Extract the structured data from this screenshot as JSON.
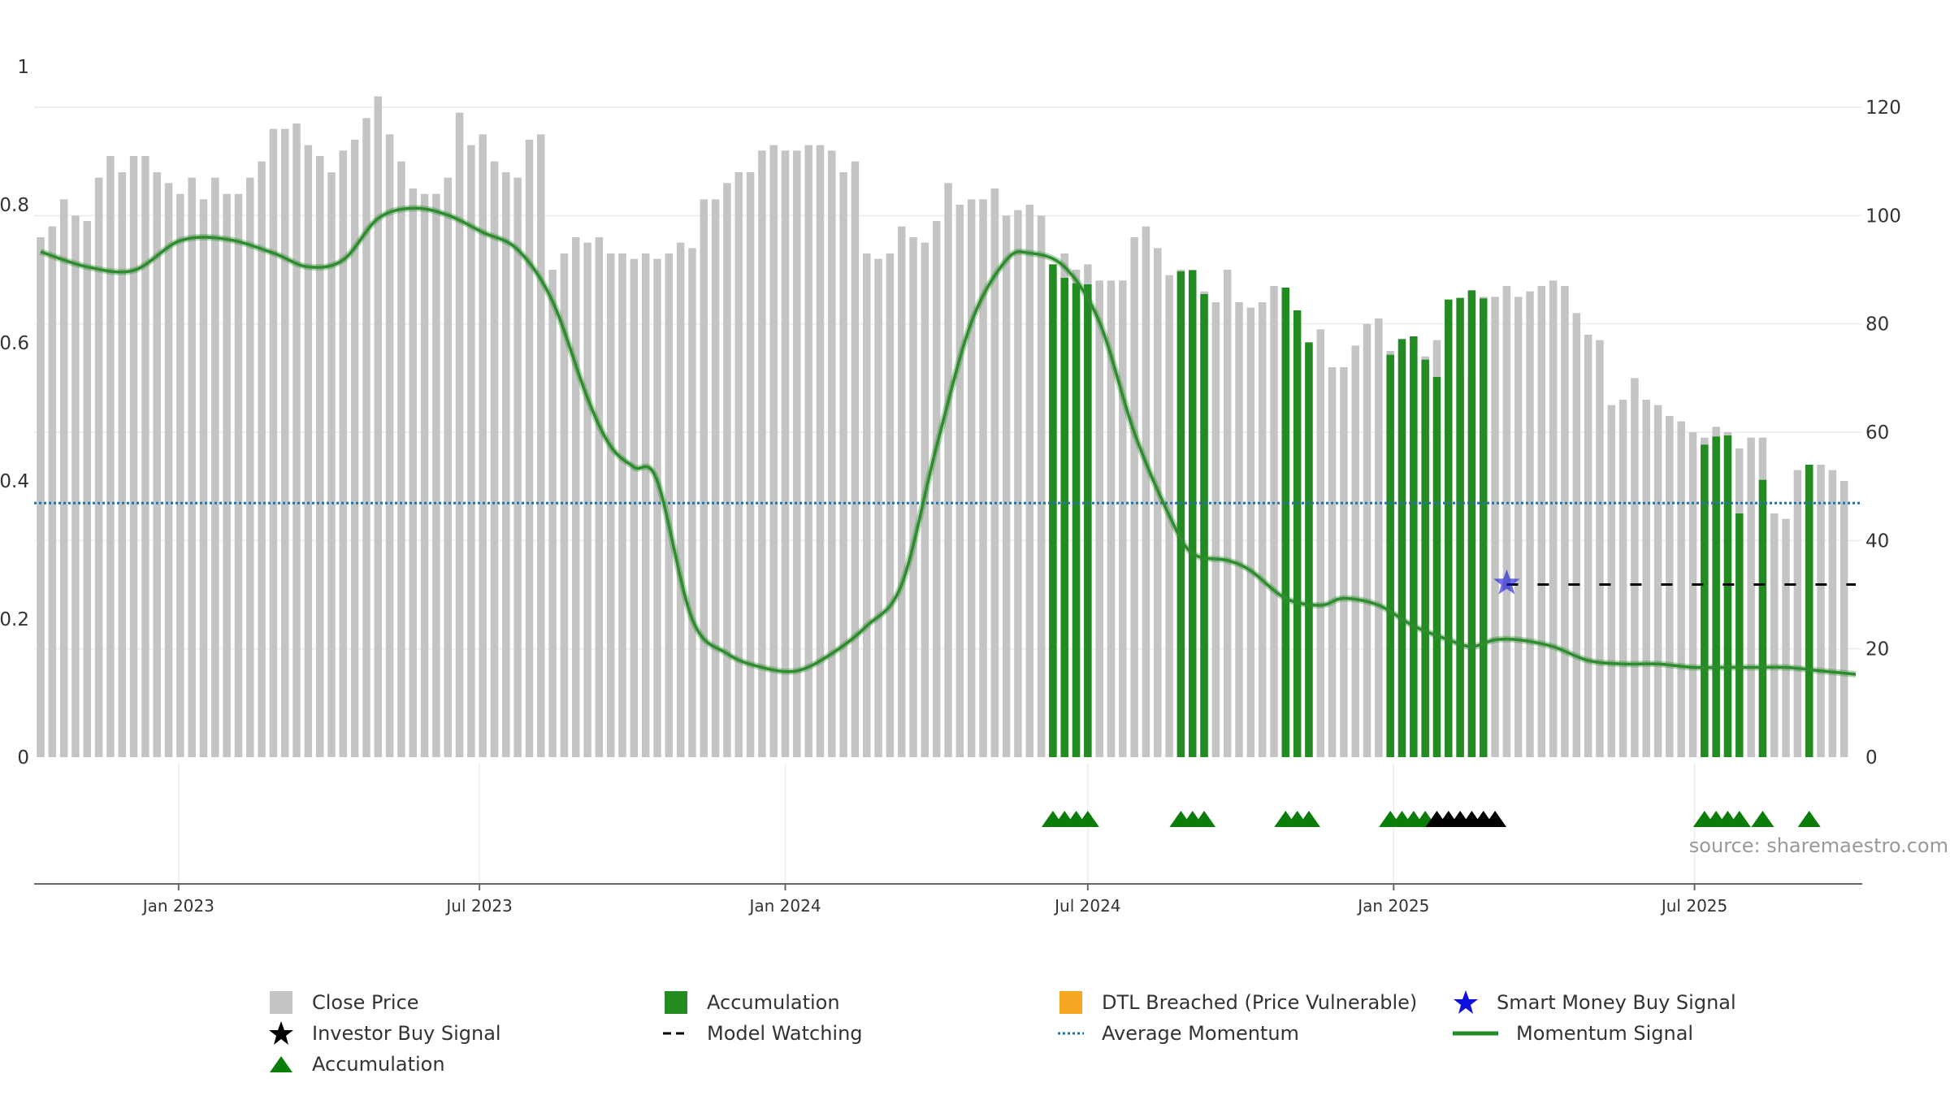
{
  "chart_data": {
    "type": "bar",
    "source_text": "source: sharemaestro.com",
    "left_axis": {
      "ylim": [
        0,
        1
      ],
      "ticks": [
        0,
        0.2,
        0.4,
        0.6,
        0.8,
        1
      ],
      "tick_labels": [
        "0",
        "0.2",
        "0.4",
        "0.6",
        "0.8",
        "1"
      ]
    },
    "right_axis": {
      "ylim": [
        0,
        127.5
      ],
      "ticks": [
        0,
        20,
        40,
        60,
        80,
        100,
        120
      ],
      "tick_labels": [
        "0",
        "20",
        "40",
        "60",
        "80",
        "100",
        "120"
      ]
    },
    "x_axis": {
      "start": "2022-10-10",
      "end": "2025-10-06",
      "ticks": [
        "2023-01-01",
        "2023-07-01",
        "2024-01-01",
        "2024-07-01",
        "2025-01-01",
        "2025-07-01"
      ],
      "tick_labels": [
        "Jan 2023",
        "Jul 2023",
        "Jan 2024",
        "Jul 2024",
        "Jan 2025",
        "Jul 2025"
      ]
    },
    "grid": true,
    "legend_position": "bottom",
    "colors": {
      "close_price": "#c4c4c4",
      "accumulation": "#228b22",
      "dtl_breached": "#f5a623",
      "smart_money": "#1010dd",
      "investor_buy": "#000000",
      "model_watching": "#000000",
      "average_momentum": "#2f6f9f",
      "momentum_signal": "#2e8b2e",
      "accumulation_marker": "#0a7d0a"
    },
    "week_start": "2022-10-10",
    "close_price": [
      96,
      98,
      103,
      100,
      99,
      107,
      111,
      108,
      111,
      111,
      108,
      106,
      104,
      107,
      103,
      107,
      104,
      104,
      107,
      110,
      116,
      116,
      117,
      113,
      111,
      108,
      112,
      114,
      118,
      122,
      115,
      110,
      105,
      104,
      104,
      107,
      119,
      113,
      115,
      110,
      108,
      107,
      114,
      115,
      90,
      93,
      96,
      95,
      96,
      93,
      93,
      92,
      93,
      92,
      93,
      95,
      94,
      103,
      103,
      106,
      108,
      108,
      112,
      113,
      112,
      112,
      113,
      113,
      112,
      108,
      110,
      93,
      92,
      93,
      98,
      96,
      95,
      99,
      106,
      102,
      103,
      103,
      105,
      100,
      101,
      102,
      100,
      90,
      93,
      90,
      91,
      88,
      88,
      88,
      96,
      98,
      94,
      89,
      90,
      90,
      86,
      84,
      90,
      84,
      83,
      84,
      87,
      83,
      77,
      76,
      79,
      72,
      72,
      76,
      80,
      81,
      75,
      76,
      74,
      74,
      77,
      78,
      73,
      70,
      85,
      85,
      87,
      85,
      86,
      87,
      88,
      87,
      82,
      78,
      77,
      65,
      66,
      70,
      66,
      65,
      63,
      62,
      60,
      59,
      61,
      60,
      57,
      59,
      59,
      45,
      44,
      53,
      54,
      54,
      53,
      51
    ],
    "accumulation_bars": [
      {
        "date": "2024-06-10",
        "value": 91
      },
      {
        "date": "2024-06-17",
        "value": 88.5
      },
      {
        "date": "2024-06-24",
        "value": 87.5
      },
      {
        "date": "2024-07-01",
        "value": 87.3
      },
      {
        "date": "2024-08-26",
        "value": 89.7
      },
      {
        "date": "2024-09-02",
        "value": 89.9
      },
      {
        "date": "2024-09-09",
        "value": 85.5
      },
      {
        "date": "2024-10-28",
        "value": 86.7
      },
      {
        "date": "2024-11-04",
        "value": 82.5
      },
      {
        "date": "2024-11-11",
        "value": 76.6
      },
      {
        "date": "2024-12-30",
        "value": 74.3
      },
      {
        "date": "2025-01-06",
        "value": 77.2
      },
      {
        "date": "2025-01-13",
        "value": 77.7
      },
      {
        "date": "2025-01-20",
        "value": 73.4
      },
      {
        "date": "2025-01-27",
        "value": 70.2
      },
      {
        "date": "2025-02-03",
        "value": 84.5
      },
      {
        "date": "2025-02-10",
        "value": 84.8
      },
      {
        "date": "2025-02-17",
        "value": 86.2
      },
      {
        "date": "2025-02-24",
        "value": 84.7
      },
      {
        "date": "2025-07-07",
        "value": 57.7
      },
      {
        "date": "2025-07-14",
        "value": 59.2
      },
      {
        "date": "2025-07-21",
        "value": 59.4
      },
      {
        "date": "2025-07-28",
        "value": 45
      },
      {
        "date": "2025-08-11",
        "value": 51.2
      },
      {
        "date": "2025-09-08",
        "value": 54.0
      }
    ],
    "momentum_signal": [
      [
        "2022-10-10",
        0.732
      ],
      [
        "2022-11-07",
        0.71
      ],
      [
        "2022-12-05",
        0.705
      ],
      [
        "2023-01-02",
        0.748
      ],
      [
        "2023-01-30",
        0.75
      ],
      [
        "2023-02-27",
        0.73
      ],
      [
        "2023-03-20",
        0.71
      ],
      [
        "2023-04-10",
        0.72
      ],
      [
        "2023-05-01",
        0.78
      ],
      [
        "2023-05-22",
        0.795
      ],
      [
        "2023-06-12",
        0.785
      ],
      [
        "2023-07-03",
        0.76
      ],
      [
        "2023-07-24",
        0.735
      ],
      [
        "2023-08-14",
        0.66
      ],
      [
        "2023-09-04",
        0.52
      ],
      [
        "2023-09-18",
        0.45
      ],
      [
        "2023-10-02",
        0.42
      ],
      [
        "2023-10-16",
        0.4
      ],
      [
        "2023-11-06",
        0.2
      ],
      [
        "2023-11-27",
        0.15
      ],
      [
        "2023-12-18",
        0.13
      ],
      [
        "2024-01-08",
        0.125
      ],
      [
        "2024-01-29",
        0.15
      ],
      [
        "2024-02-19",
        0.19
      ],
      [
        "2024-03-11",
        0.25
      ],
      [
        "2024-04-01",
        0.45
      ],
      [
        "2024-04-22",
        0.63
      ],
      [
        "2024-05-13",
        0.72
      ],
      [
        "2024-05-27",
        0.73
      ],
      [
        "2024-06-17",
        0.71
      ],
      [
        "2024-07-08",
        0.63
      ],
      [
        "2024-07-29",
        0.47
      ],
      [
        "2024-08-19",
        0.35
      ],
      [
        "2024-09-02",
        0.295
      ],
      [
        "2024-09-23",
        0.285
      ],
      [
        "2024-10-07",
        0.27
      ],
      [
        "2024-10-28",
        0.23
      ],
      [
        "2024-11-18",
        0.22
      ],
      [
        "2024-12-02",
        0.23
      ],
      [
        "2024-12-23",
        0.22
      ],
      [
        "2025-01-13",
        0.19
      ],
      [
        "2025-02-03",
        0.17
      ],
      [
        "2025-02-17",
        0.16
      ],
      [
        "2025-03-03",
        0.17
      ],
      [
        "2025-03-17",
        0.17
      ],
      [
        "2025-04-07",
        0.16
      ],
      [
        "2025-04-28",
        0.14
      ],
      [
        "2025-05-19",
        0.135
      ],
      [
        "2025-06-09",
        0.135
      ],
      [
        "2025-06-30",
        0.13
      ],
      [
        "2025-07-21",
        0.13
      ],
      [
        "2025-08-04",
        0.13
      ],
      [
        "2025-08-25",
        0.13
      ],
      [
        "2025-09-15",
        0.125
      ],
      [
        "2025-10-06",
        0.12
      ]
    ],
    "average_momentum": 0.368,
    "model_watching": {
      "start": "2025-03-10",
      "end": "2025-10-06",
      "value": 0.25
    },
    "smart_money_buy_signal": [
      {
        "date": "2025-03-10",
        "value": 0.252
      }
    ],
    "accumulation_markers": [
      "2024-06-10",
      "2024-06-17",
      "2024-06-24",
      "2024-07-01",
      "2024-08-26",
      "2024-09-02",
      "2024-09-09",
      "2024-10-28",
      "2024-11-04",
      "2024-11-11",
      "2024-12-30",
      "2025-01-06",
      "2025-01-13",
      "2025-01-20",
      "2025-07-07",
      "2025-07-14",
      "2025-07-21",
      "2025-07-28",
      "2025-08-11",
      "2025-09-08"
    ],
    "investor_buy_markers": [
      "2025-01-27",
      "2025-02-03",
      "2025-02-10",
      "2025-02-17",
      "2025-02-24",
      "2025-03-03"
    ],
    "legend": [
      {
        "label": "Close Price",
        "symbol": "gray-square"
      },
      {
        "label": "Accumulation",
        "symbol": "green-square"
      },
      {
        "label": "DTL Breached (Price Vulnerable)",
        "symbol": "orange-square"
      },
      {
        "label": "Smart Money Buy Signal",
        "symbol": "blue-star"
      },
      {
        "label": "Investor Buy Signal",
        "symbol": "black-star"
      },
      {
        "label": "Model Watching",
        "symbol": "black-dashed-line"
      },
      {
        "label": "Average Momentum",
        "symbol": "blue-dotted-line"
      },
      {
        "label": "Momentum Signal",
        "symbol": "green-line"
      },
      {
        "label": "Accumulation",
        "symbol": "green-triangle"
      }
    ]
  }
}
